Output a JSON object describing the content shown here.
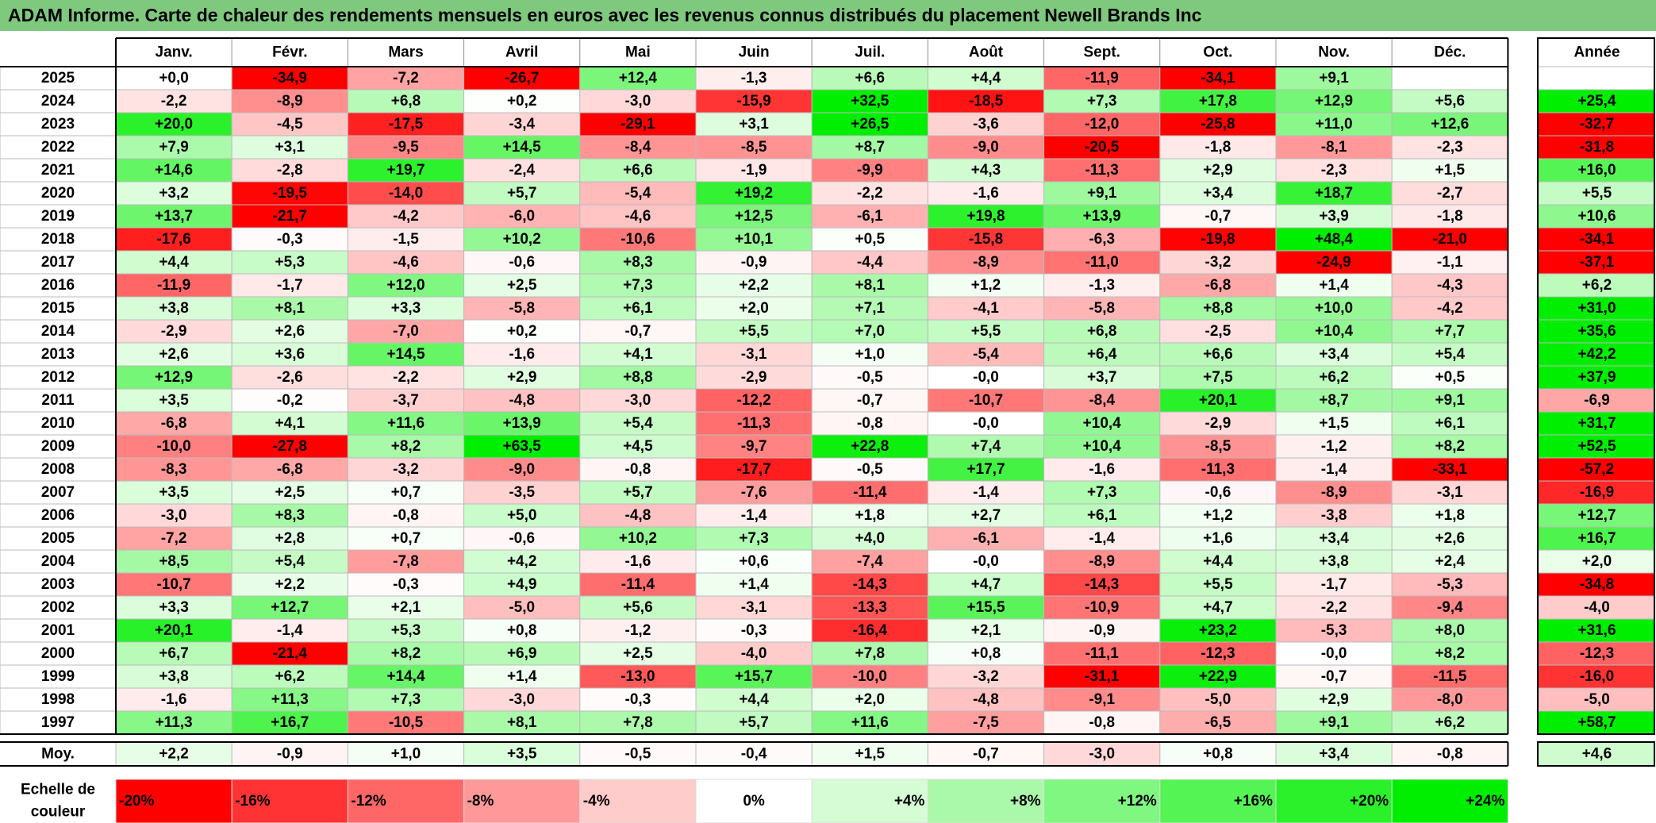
{
  "title": "ADAM Informe. Carte de chaleur des rendements mensuels en euros avec les revenus connus distribués du placement Newell Brands Inc",
  "chart_data": {
    "type": "heatmap",
    "title": "ADAM Informe. Carte de chaleur des rendements mensuels en euros avec les revenus connus distribués du placement Newell Brands Inc",
    "months": [
      "Janv.",
      "Févr.",
      "Mars",
      "Avril",
      "Mai",
      "Juin",
      "Juil.",
      "Août",
      "Sept.",
      "Oct.",
      "Nov.",
      "Déc."
    ],
    "year_header": "Année",
    "rows": [
      {
        "year": "2025",
        "values": [
          "+0,0",
          "-34,9",
          "-7,2",
          "-26,7",
          "+12,4",
          "-1,3",
          "+6,6",
          "+4,4",
          "-11,9",
          "-34,1",
          "+9,1",
          ""
        ],
        "annual": ""
      },
      {
        "year": "2024",
        "values": [
          "-2,2",
          "-8,9",
          "+6,8",
          "+0,2",
          "-3,0",
          "-15,9",
          "+32,5",
          "-18,5",
          "+7,3",
          "+17,8",
          "+12,9",
          "+5,6"
        ],
        "annual": "+25,4"
      },
      {
        "year": "2023",
        "values": [
          "+20,0",
          "-4,5",
          "-17,5",
          "-3,4",
          "-29,1",
          "+3,1",
          "+26,5",
          "-3,6",
          "-12,0",
          "-25,8",
          "+11,0",
          "+12,6"
        ],
        "annual": "-32,7"
      },
      {
        "year": "2022",
        "values": [
          "+7,9",
          "+3,1",
          "-9,5",
          "+14,5",
          "-8,4",
          "-8,5",
          "+8,7",
          "-9,0",
          "-20,5",
          "-1,8",
          "-8,1",
          "-2,3"
        ],
        "annual": "-31,8"
      },
      {
        "year": "2021",
        "values": [
          "+14,6",
          "-2,8",
          "+19,7",
          "-2,4",
          "+6,6",
          "-1,9",
          "-9,9",
          "+4,3",
          "-11,3",
          "+2,9",
          "-2,3",
          "+1,5"
        ],
        "annual": "+16,0"
      },
      {
        "year": "2020",
        "values": [
          "+3,2",
          "-19,5",
          "-14,0",
          "+5,7",
          "-5,4",
          "+19,2",
          "-2,2",
          "-1,6",
          "+9,1",
          "+3,4",
          "+18,7",
          "-2,7"
        ],
        "annual": "+5,5"
      },
      {
        "year": "2019",
        "values": [
          "+13,7",
          "-21,7",
          "-4,2",
          "-6,0",
          "-4,6",
          "+12,5",
          "-6,1",
          "+19,8",
          "+13,9",
          "-0,7",
          "+3,9",
          "-1,8"
        ],
        "annual": "+10,6"
      },
      {
        "year": "2018",
        "values": [
          "-17,6",
          "-0,3",
          "-1,5",
          "+10,2",
          "-10,6",
          "+10,1",
          "+0,5",
          "-15,8",
          "-6,3",
          "-19,8",
          "+48,4",
          "-21,0"
        ],
        "annual": "-34,1"
      },
      {
        "year": "2017",
        "values": [
          "+4,4",
          "+5,3",
          "-4,6",
          "-0,6",
          "+8,3",
          "-0,9",
          "-4,4",
          "-8,9",
          "-11,0",
          "-3,2",
          "-24,9",
          "-1,1"
        ],
        "annual": "-37,1"
      },
      {
        "year": "2016",
        "values": [
          "-11,9",
          "-1,7",
          "+12,0",
          "+2,5",
          "+7,3",
          "+2,2",
          "+8,1",
          "+1,2",
          "-1,3",
          "-6,8",
          "+1,4",
          "-4,3"
        ],
        "annual": "+6,2"
      },
      {
        "year": "2015",
        "values": [
          "+3,8",
          "+8,1",
          "+3,3",
          "-5,8",
          "+6,1",
          "+2,0",
          "+7,1",
          "-4,1",
          "-5,8",
          "+8,8",
          "+10,0",
          "-4,2"
        ],
        "annual": "+31,0"
      },
      {
        "year": "2014",
        "values": [
          "-2,9",
          "+2,6",
          "-7,0",
          "+0,2",
          "-0,7",
          "+5,5",
          "+7,0",
          "+5,5",
          "+6,8",
          "-2,5",
          "+10,4",
          "+7,7"
        ],
        "annual": "+35,6"
      },
      {
        "year": "2013",
        "values": [
          "+2,6",
          "+3,6",
          "+14,5",
          "-1,6",
          "+4,1",
          "-3,1",
          "+1,0",
          "-5,4",
          "+6,4",
          "+6,6",
          "+3,4",
          "+5,4"
        ],
        "annual": "+42,2"
      },
      {
        "year": "2012",
        "values": [
          "+12,9",
          "-2,6",
          "-2,2",
          "+2,9",
          "+8,8",
          "-2,9",
          "-0,5",
          "-0,0",
          "+3,7",
          "+7,5",
          "+6,2",
          "+0,5"
        ],
        "annual": "+37,9"
      },
      {
        "year": "2011",
        "values": [
          "+3,5",
          "-0,2",
          "-3,7",
          "-4,8",
          "-3,0",
          "-12,2",
          "-0,7",
          "-10,7",
          "-8,4",
          "+20,1",
          "+8,7",
          "+9,1"
        ],
        "annual": "-6,9"
      },
      {
        "year": "2010",
        "values": [
          "-6,8",
          "+4,1",
          "+11,6",
          "+13,9",
          "+5,4",
          "-11,3",
          "-0,8",
          "-0,0",
          "+10,4",
          "-2,9",
          "+1,5",
          "+6,1"
        ],
        "annual": "+31,7"
      },
      {
        "year": "2009",
        "values": [
          "-10,0",
          "-27,8",
          "+8,2",
          "+63,5",
          "+4,5",
          "-9,7",
          "+22,8",
          "+7,4",
          "+10,4",
          "-8,5",
          "-1,2",
          "+8,2"
        ],
        "annual": "+52,5"
      },
      {
        "year": "2008",
        "values": [
          "-8,3",
          "-6,8",
          "-3,2",
          "-9,0",
          "-0,8",
          "-17,7",
          "-0,5",
          "+17,7",
          "-1,6",
          "-11,3",
          "-1,4",
          "-33,1"
        ],
        "annual": "-57,2"
      },
      {
        "year": "2007",
        "values": [
          "+3,5",
          "+2,5",
          "+0,7",
          "-3,5",
          "+5,7",
          "-7,6",
          "-11,4",
          "-1,4",
          "+7,3",
          "-0,6",
          "-8,9",
          "-3,1"
        ],
        "annual": "-16,9"
      },
      {
        "year": "2006",
        "values": [
          "-3,0",
          "+8,3",
          "-0,8",
          "+5,0",
          "-4,8",
          "-1,4",
          "+1,8",
          "+2,7",
          "+6,1",
          "+1,2",
          "-3,8",
          "+1,8"
        ],
        "annual": "+12,7"
      },
      {
        "year": "2005",
        "values": [
          "-7,2",
          "+2,8",
          "+0,7",
          "-0,6",
          "+10,2",
          "+7,3",
          "+4,0",
          "-6,1",
          "-1,4",
          "+1,6",
          "+3,4",
          "+2,6"
        ],
        "annual": "+16,7"
      },
      {
        "year": "2004",
        "values": [
          "+8,5",
          "+5,4",
          "-7,8",
          "+4,2",
          "-1,6",
          "+0,6",
          "-7,4",
          "-0,0",
          "-8,9",
          "+4,4",
          "+3,8",
          "+2,4"
        ],
        "annual": "+2,0"
      },
      {
        "year": "2003",
        "values": [
          "-10,7",
          "+2,2",
          "-0,3",
          "+4,9",
          "-11,4",
          "+1,4",
          "-14,3",
          "+4,7",
          "-14,3",
          "+5,5",
          "-1,7",
          "-5,3"
        ],
        "annual": "-34,8"
      },
      {
        "year": "2002",
        "values": [
          "+3,3",
          "+12,7",
          "+2,1",
          "-5,0",
          "+5,6",
          "-3,1",
          "-13,3",
          "+15,5",
          "-10,9",
          "+4,7",
          "-2,2",
          "-9,4"
        ],
        "annual": "-4,0"
      },
      {
        "year": "2001",
        "values": [
          "+20,1",
          "-1,4",
          "+5,3",
          "+0,8",
          "-1,2",
          "-0,3",
          "-16,4",
          "+2,1",
          "-0,9",
          "+23,2",
          "-5,3",
          "+8,0"
        ],
        "annual": "+31,6"
      },
      {
        "year": "2000",
        "values": [
          "+6,7",
          "-21,4",
          "+8,2",
          "+6,9",
          "+2,5",
          "-4,0",
          "+7,8",
          "+0,8",
          "-11,1",
          "-12,3",
          "-0,0",
          "+8,2"
        ],
        "annual": "-12,3"
      },
      {
        "year": "1999",
        "values": [
          "+3,8",
          "+6,2",
          "+14,4",
          "+1,4",
          "-13,0",
          "+15,7",
          "-10,0",
          "-3,2",
          "-31,1",
          "+22,9",
          "-0,7",
          "-11,5"
        ],
        "annual": "-16,0"
      },
      {
        "year": "1998",
        "values": [
          "-1,6",
          "+11,3",
          "+7,3",
          "-3,0",
          "-0,3",
          "+4,4",
          "+2,0",
          "-4,8",
          "-9,1",
          "-5,0",
          "+2,9",
          "-8,0"
        ],
        "annual": "-5,0"
      },
      {
        "year": "1997",
        "values": [
          "+11,3",
          "+16,7",
          "-10,5",
          "+8,1",
          "+7,8",
          "+5,7",
          "+11,6",
          "-7,5",
          "-0,8",
          "-6,5",
          "+9,1",
          "+6,2"
        ],
        "annual": "+58,7"
      }
    ],
    "average": {
      "label": "Moy.",
      "values": [
        "+2,2",
        "-0,9",
        "+1,0",
        "+3,5",
        "-0,5",
        "-0,4",
        "+1,5",
        "-0,7",
        "-3,0",
        "+0,8",
        "+3,4",
        "-0,8"
      ],
      "annual": "+4,6"
    },
    "scale": {
      "label_line1": "Echelle de",
      "label_line2": "couleur",
      "steps": [
        {
          "label": "-20%",
          "value": -20
        },
        {
          "label": "-16%",
          "value": -16
        },
        {
          "label": "-12%",
          "value": -12
        },
        {
          "label": "-8%",
          "value": -8
        },
        {
          "label": "-4%",
          "value": -4
        },
        {
          "label": "0%",
          "value": 0
        },
        {
          "label": "+4%",
          "value": 4
        },
        {
          "label": "+8%",
          "value": 8
        },
        {
          "label": "+12%",
          "value": 12
        },
        {
          "label": "+16%",
          "value": 16
        },
        {
          "label": "+20%",
          "value": 20
        },
        {
          "label": "+24%",
          "value": 24
        }
      ]
    },
    "colors": {
      "negative_max": "#ff0000",
      "neutral": "#ffffff",
      "positive_max": "#00ee00",
      "title_background": "#7fc97f"
    }
  }
}
